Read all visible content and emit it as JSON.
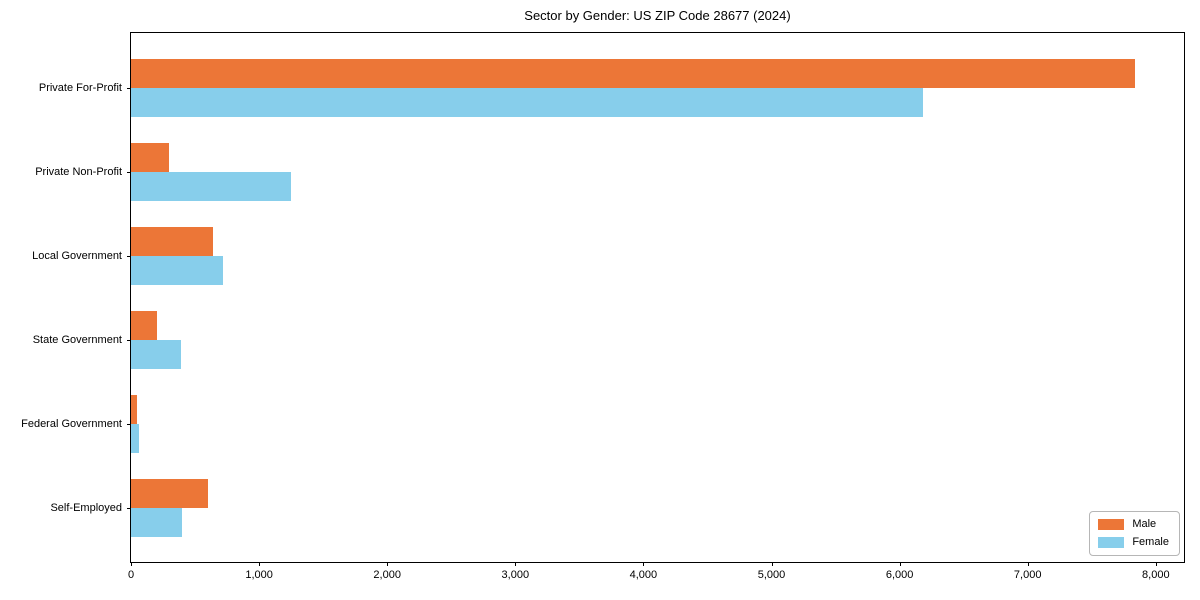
{
  "chart_data": {
    "type": "bar",
    "orientation": "horizontal",
    "title": "Sector by Gender: US ZIP Code 28677 (2024)",
    "categories": [
      "Private For-Profit",
      "Private Non-Profit",
      "Local Government",
      "State Government",
      "Federal Government",
      "Self-Employed"
    ],
    "series": [
      {
        "name": "Male",
        "color": "#ec7637",
        "values": [
          7840,
          300,
          640,
          200,
          45,
          600
        ]
      },
      {
        "name": "Female",
        "color": "#87ceeb",
        "values": [
          6180,
          1250,
          720,
          390,
          60,
          400
        ]
      }
    ],
    "xlabel": "",
    "ylabel": "",
    "xlim": [
      0,
      8220
    ],
    "xticks": [
      0,
      1000,
      2000,
      3000,
      4000,
      5000,
      6000,
      7000,
      8000
    ],
    "xtick_labels": [
      "0",
      "1,000",
      "2,000",
      "3,000",
      "4,000",
      "5,000",
      "6,000",
      "7,000",
      "8,000"
    ],
    "grid": false,
    "legend": {
      "position": "lower right",
      "entries": [
        "Male",
        "Female"
      ]
    }
  }
}
